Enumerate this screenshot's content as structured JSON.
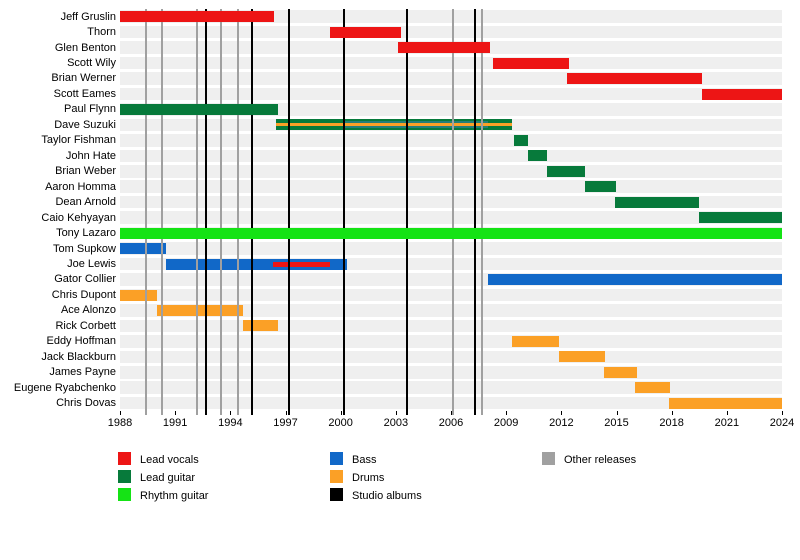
{
  "chart_data": {
    "type": "timeline",
    "x_axis": {
      "min": 1988,
      "max": 2024,
      "tick_years": [
        1988,
        1991,
        1994,
        1997,
        2000,
        2003,
        2006,
        2009,
        2012,
        2015,
        2018,
        2021,
        2024
      ]
    },
    "colors": {
      "lead_vocals": "#ed1515",
      "lead_guitar": "#077a3b",
      "rhythm_guitar": "#15e315",
      "bass": "#1168c8",
      "bass_blend": "#237e78",
      "drums": "#fba026",
      "studio_albums": "#000000",
      "other_releases": "#a0a0a0",
      "row_band": "#efefef"
    },
    "members": [
      {
        "name": "Jeff Gruslin",
        "bars": [
          {
            "role": "lead_vocals",
            "from": 1988,
            "to": 1996.4,
            "style": "full"
          }
        ]
      },
      {
        "name": "Thorn",
        "bars": [
          {
            "role": "lead_vocals",
            "from": 1999.4,
            "to": 2003.3,
            "style": "full"
          }
        ]
      },
      {
        "name": "Glen Benton",
        "bars": [
          {
            "role": "lead_vocals",
            "from": 2003.1,
            "to": 2008.1,
            "style": "full"
          }
        ]
      },
      {
        "name": "Scott Wily",
        "bars": [
          {
            "role": "lead_vocals",
            "from": 2008.3,
            "to": 2012.4,
            "style": "full"
          }
        ]
      },
      {
        "name": "Brian Werner",
        "bars": [
          {
            "role": "lead_vocals",
            "from": 2012.3,
            "to": 2019.65,
            "style": "full"
          }
        ]
      },
      {
        "name": "Scott Eames",
        "bars": [
          {
            "role": "lead_vocals",
            "from": 2019.65,
            "to": 2024,
            "style": "full"
          }
        ]
      },
      {
        "name": "Paul Flynn",
        "bars": [
          {
            "role": "lead_guitar",
            "from": 1988,
            "to": 1996.6,
            "style": "full"
          }
        ]
      },
      {
        "name": "Dave Suzuki",
        "behind_release_lines": true,
        "bars": [
          {
            "role": "lead_guitar",
            "from": 1996.5,
            "to": 2009.3,
            "style": "full"
          },
          {
            "role": "bass",
            "from": 2000.2,
            "to": 2008.0,
            "style": "inner"
          },
          {
            "role": "drums",
            "from": 1996.5,
            "to": 2009.3,
            "style": "stripe",
            "thick": 3
          }
        ]
      },
      {
        "name": "Taylor Fishman",
        "bars": [
          {
            "role": "lead_guitar",
            "from": 2009.4,
            "to": 2010.2,
            "style": "full"
          }
        ]
      },
      {
        "name": "John Hate",
        "bars": [
          {
            "role": "lead_guitar",
            "from": 2010.2,
            "to": 2011.2,
            "style": "full"
          }
        ]
      },
      {
        "name": "Brian Weber",
        "bars": [
          {
            "role": "lead_guitar",
            "from": 2011.2,
            "to": 2013.3,
            "style": "full"
          }
        ]
      },
      {
        "name": "Aaron Homma",
        "bars": [
          {
            "role": "lead_guitar",
            "from": 2013.3,
            "to": 2015.0,
            "style": "full"
          }
        ]
      },
      {
        "name": "Dean Arnold",
        "bars": [
          {
            "role": "lead_guitar",
            "from": 2014.9,
            "to": 2019.5,
            "style": "full"
          }
        ]
      },
      {
        "name": "Caio Kehyayan",
        "bars": [
          {
            "role": "lead_guitar",
            "from": 2019.5,
            "to": 2024,
            "style": "full"
          }
        ]
      },
      {
        "name": "Tony Lazaro",
        "bars": [
          {
            "role": "rhythm_guitar",
            "from": 1988,
            "to": 2024,
            "style": "full"
          }
        ]
      },
      {
        "name": "Tom Supkow",
        "behind_release_lines": true,
        "bars": [
          {
            "role": "bass",
            "from": 1988,
            "to": 1990.5,
            "style": "full"
          }
        ]
      },
      {
        "name": "Joe Lewis",
        "behind_release_lines": true,
        "bars": [
          {
            "role": "bass",
            "from": 1990.5,
            "to": 2000.35,
            "style": "full"
          },
          {
            "role": "lead_vocals",
            "from": 1996.3,
            "to": 1999.4,
            "style": "stripe",
            "thick": 5
          }
        ]
      },
      {
        "name": "Gator Collier",
        "bars": [
          {
            "role": "bass",
            "from": 2008.0,
            "to": 2024,
            "style": "full"
          }
        ]
      },
      {
        "name": "Chris Dupont",
        "behind_release_lines": true,
        "bars": [
          {
            "role": "drums",
            "from": 1988,
            "to": 1990.0,
            "style": "full"
          }
        ]
      },
      {
        "name": "Ace Alonzo",
        "behind_release_lines": true,
        "bars": [
          {
            "role": "drums",
            "from": 1990.0,
            "to": 1994.7,
            "style": "full"
          }
        ]
      },
      {
        "name": "Rick Corbett",
        "behind_release_lines": true,
        "bars": [
          {
            "role": "drums",
            "from": 1994.7,
            "to": 1996.6,
            "style": "full"
          }
        ]
      },
      {
        "name": "Eddy Hoffman",
        "bars": [
          {
            "role": "drums",
            "from": 2009.3,
            "to": 2011.9,
            "style": "full"
          }
        ]
      },
      {
        "name": "Jack Blackburn",
        "bars": [
          {
            "role": "drums",
            "from": 2011.9,
            "to": 2014.4,
            "style": "full"
          }
        ]
      },
      {
        "name": "James Payne",
        "bars": [
          {
            "role": "drums",
            "from": 2014.3,
            "to": 2016.1,
            "style": "full"
          }
        ]
      },
      {
        "name": "Eugene Ryabchenko",
        "bars": [
          {
            "role": "drums",
            "from": 2016.0,
            "to": 2017.9,
            "style": "full"
          }
        ]
      },
      {
        "name": "Chris Dovas",
        "bars": [
          {
            "role": "drums",
            "from": 2017.85,
            "to": 2024,
            "style": "full"
          }
        ]
      }
    ],
    "event_lines": {
      "studio_albums": [
        1992.7,
        1995.2,
        1997.2,
        2000.2,
        2003.6,
        2007.3
      ],
      "other_releases": [
        1989.4,
        1990.3,
        1992.2,
        1993.5,
        1994.4,
        2006.1,
        2007.7
      ]
    },
    "legend": {
      "columns": [
        [
          {
            "role": "lead_vocals",
            "label": "Lead vocals"
          },
          {
            "role": "lead_guitar",
            "label": "Lead guitar"
          },
          {
            "role": "rhythm_guitar",
            "label": "Rhythm guitar"
          }
        ],
        [
          {
            "role": "bass",
            "label": "Bass"
          },
          {
            "role": "drums",
            "label": "Drums"
          },
          {
            "role": "studio_albums",
            "label": "Studio albums"
          }
        ],
        [
          {
            "role": "other_releases",
            "label": "Other releases"
          }
        ]
      ]
    }
  }
}
